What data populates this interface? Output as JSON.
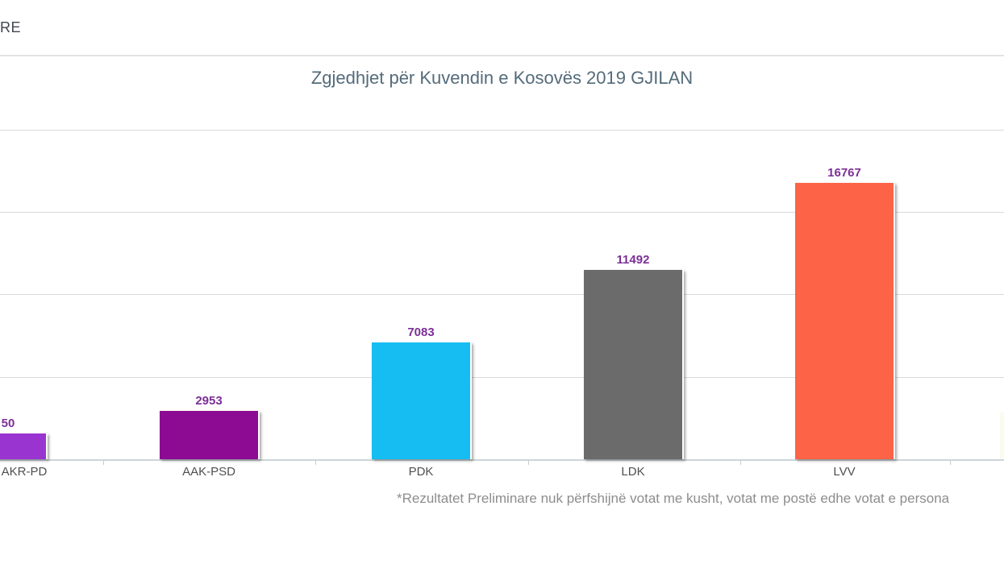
{
  "header": {
    "partial_text": "RE"
  },
  "title": "Zgjedhjet për Kuvendin e Kosovës 2019 GJILAN",
  "footnote": "*Rezultatet Preliminare nuk përfshijnë votat me kusht, votat me postë edhe votat e persona",
  "chart_data": {
    "type": "bar",
    "title": "Zgjedhjet për Kuvendin e Kosovës 2019 GJILAN",
    "categories": [
      "AKR-PD",
      "AAK-PSD",
      "PDK",
      "LDK",
      "LVV"
    ],
    "values": [
      1550,
      2953,
      7083,
      11492,
      16767
    ],
    "value_labels_visible": [
      "50",
      "2953",
      "7083",
      "11492",
      "16767"
    ],
    "bar_colors": [
      "#9a34d1",
      "#8d0a92",
      "#16bdf2",
      "#6b6b6b",
      "#fc6347"
    ],
    "xlabel": "",
    "ylabel": "",
    "ylim": [
      0,
      20000
    ],
    "gridline_values": [
      5000,
      10000,
      15000,
      20000
    ],
    "grid": "horizontal-only",
    "legend": "none",
    "value_label_color": "#7c2f97",
    "first_bar_clipped_at_left_edge": true
  },
  "colors": {
    "title": "#546b7a",
    "gridline": "#d9d9d9",
    "axis": "#ccd5d9",
    "category_label": "#4f4f4f",
    "footnote": "#8d8d8d"
  }
}
